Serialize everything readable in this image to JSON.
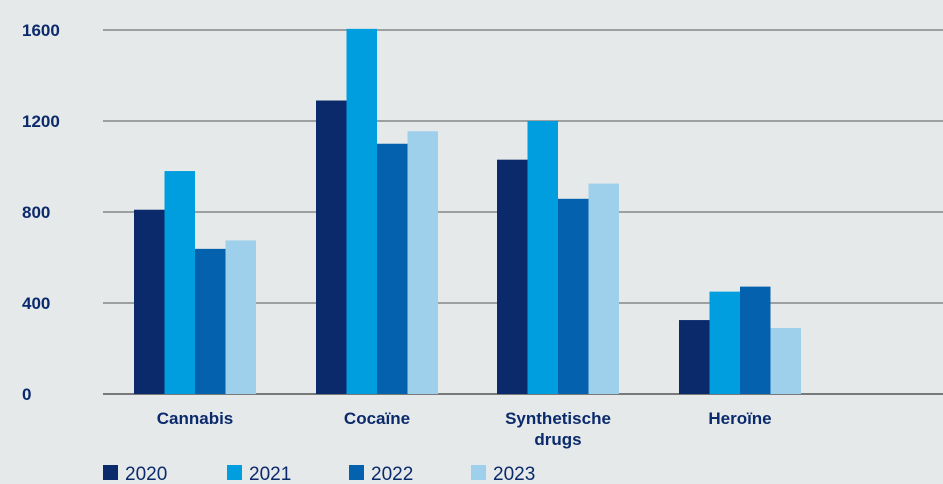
{
  "chart_data": {
    "type": "bar",
    "title": "",
    "xlabel": "",
    "ylabel": "",
    "categories": [
      [
        "Cannabis"
      ],
      [
        "Cocaïne"
      ],
      [
        "Synthetische",
        "drugs"
      ],
      [
        "Heroïne"
      ]
    ],
    "series": [
      {
        "name": "2020",
        "color": "#0b2a6b",
        "values": [
          810,
          1290,
          1030,
          325
        ]
      },
      {
        "name": "2021",
        "color": "#009ddf",
        "values": [
          980,
          1605,
          1200,
          450
        ]
      },
      {
        "name": "2022",
        "color": "#0461ad",
        "values": [
          638,
          1100,
          858,
          472
        ]
      },
      {
        "name": "2023",
        "color": "#9ed0ec",
        "values": [
          675,
          1155,
          925,
          290
        ]
      }
    ],
    "yticks": [
      0,
      400,
      800,
      1200,
      1600
    ],
    "ylim": [
      0,
      1600
    ],
    "grid": true,
    "legend_position": "bottom-left",
    "colors": {
      "text": "#0b2a6b",
      "grid": "#555555",
      "background": "#e5e9ea"
    }
  }
}
